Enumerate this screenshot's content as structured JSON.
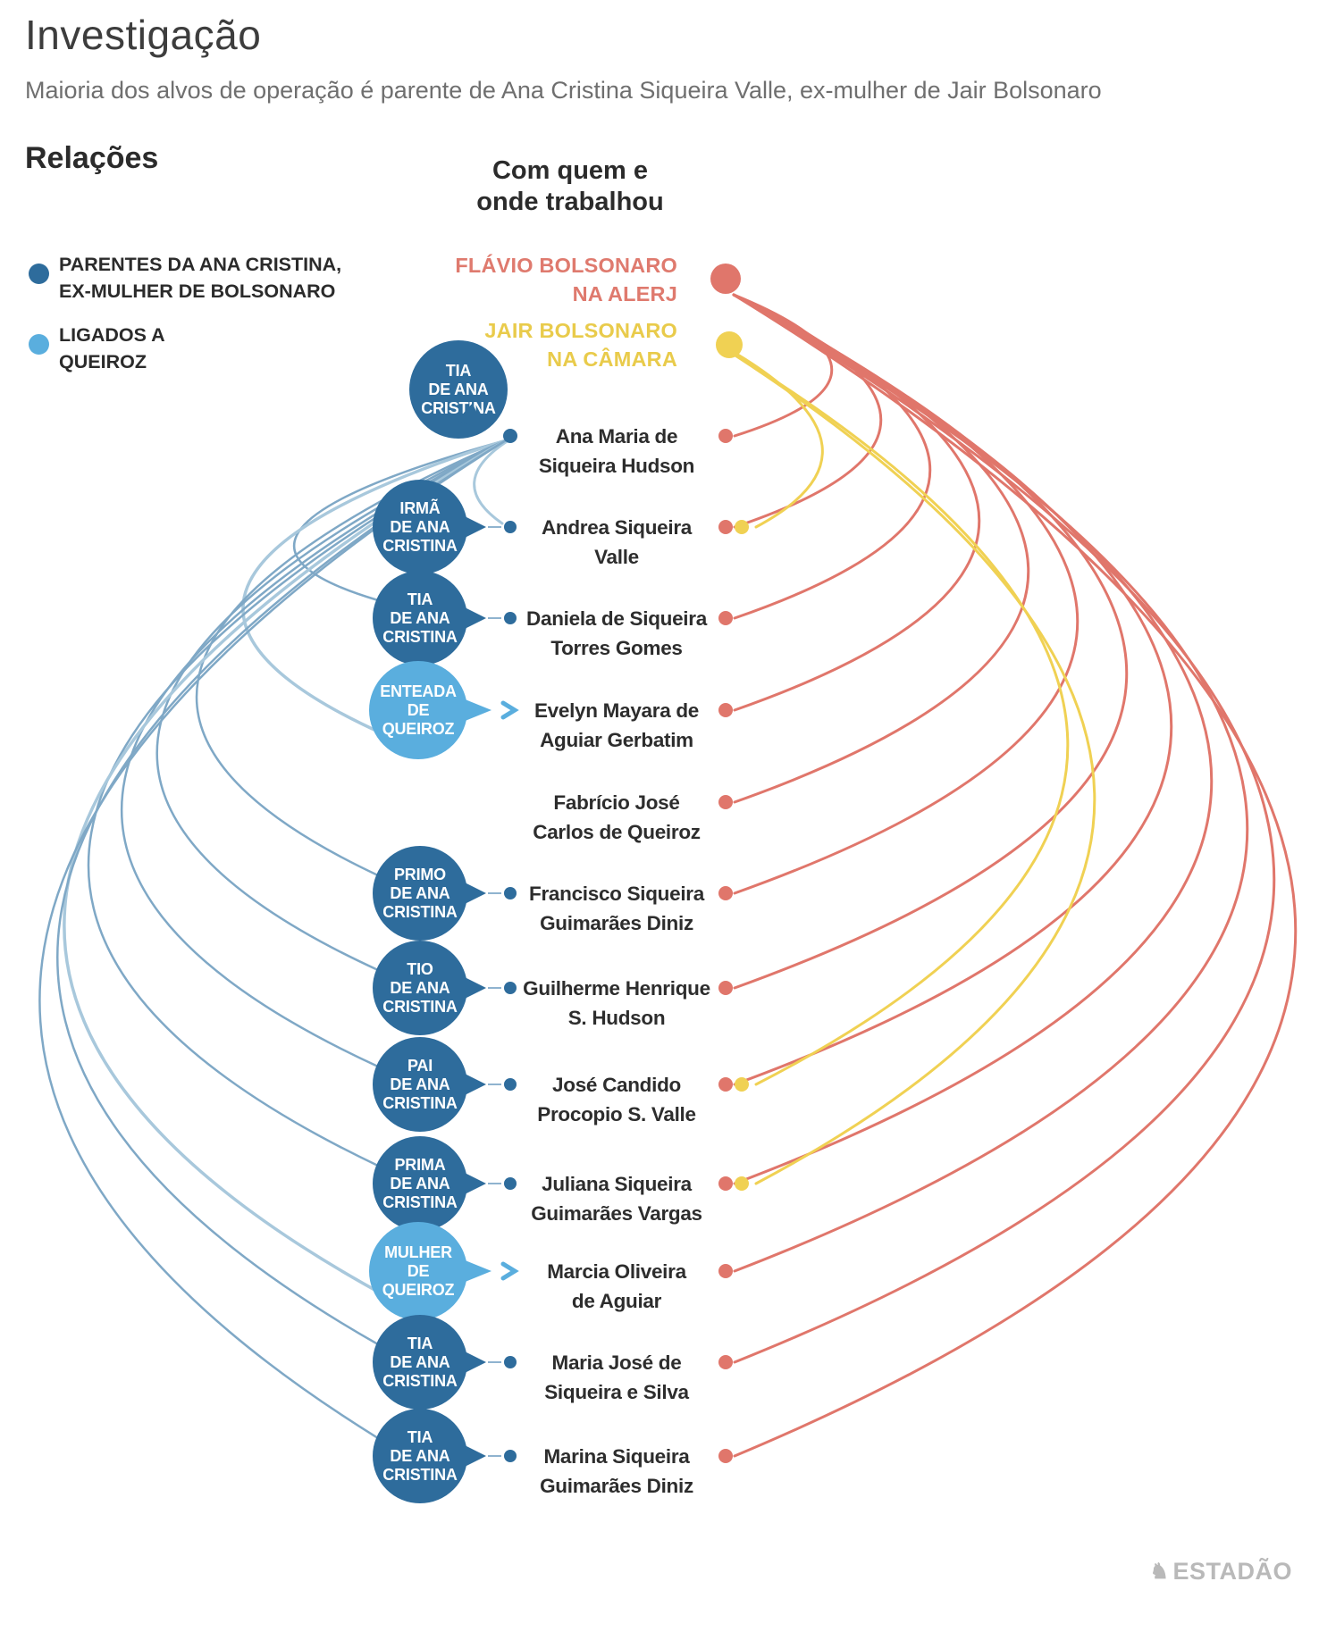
{
  "page": {
    "title": "Investigação",
    "subtitle": "Maioria dos alvos de operação é parente de Ana Cristina Siqueira Valle, ex-mulher de Jair Bolsonaro"
  },
  "legend": {
    "heading": "Relações",
    "items": [
      {
        "id": "family",
        "lines": [
          "PARENTES DA ANA CRISTINA,",
          "EX-MULHER DE BOLSONARO"
        ],
        "color": "#2e6c9c"
      },
      {
        "id": "queiroz",
        "lines": [
          "LIGADOS A",
          "QUEIROZ"
        ],
        "color": "#5aaede"
      }
    ]
  },
  "column": {
    "heading_lines": [
      "Com quem e",
      "onde trabalhou"
    ]
  },
  "workplaces": [
    {
      "id": "flavio",
      "lines": [
        "FLÁVIO BOLSONARO",
        "NA ALERJ"
      ],
      "color": "#df7a6e",
      "dot_color": "#e0766b"
    },
    {
      "id": "jair",
      "lines": [
        "JAIR BOLSONARO",
        "NA CÂMARA"
      ],
      "color": "#e9cb4b",
      "dot_color": "#f0d153"
    }
  ],
  "people": [
    {
      "name_lines": [
        "Ana Maria de",
        "Siqueira Hudson"
      ],
      "relation_lines": [
        "TIA",
        "DE ANA",
        "CRISTINA"
      ],
      "relation_type": "family",
      "workplaces": [
        "flavio"
      ]
    },
    {
      "name_lines": [
        "Andrea Siqueira",
        "Valle"
      ],
      "relation_lines": [
        "IRMÃ",
        "DE ANA",
        "CRISTINA"
      ],
      "relation_type": "family",
      "workplaces": [
        "flavio",
        "jair"
      ]
    },
    {
      "name_lines": [
        "Daniela de Siqueira",
        "Torres Gomes"
      ],
      "relation_lines": [
        "TIA",
        "DE ANA",
        "CRISTINA"
      ],
      "relation_type": "family",
      "workplaces": [
        "flavio"
      ]
    },
    {
      "name_lines": [
        "Evelyn Mayara de",
        "Aguiar Gerbatim"
      ],
      "relation_lines": [
        "ENTEADA",
        "DE",
        "QUEIROZ"
      ],
      "relation_type": "queiroz",
      "workplaces": [
        "flavio"
      ]
    },
    {
      "name_lines": [
        "Fabrício José",
        "Carlos de Queiroz"
      ],
      "relation_lines": null,
      "relation_type": "none",
      "workplaces": [
        "flavio"
      ]
    },
    {
      "name_lines": [
        "Francisco Siqueira",
        "Guimarães Diniz"
      ],
      "relation_lines": [
        "PRIMO",
        "DE ANA",
        "CRISTINA"
      ],
      "relation_type": "family",
      "workplaces": [
        "flavio"
      ]
    },
    {
      "name_lines": [
        "Guilherme Henrique",
        "S. Hudson"
      ],
      "relation_lines": [
        "TIO",
        "DE ANA",
        "CRISTINA"
      ],
      "relation_type": "family",
      "workplaces": [
        "flavio"
      ]
    },
    {
      "name_lines": [
        "José Candido",
        "Procopio S. Valle"
      ],
      "relation_lines": [
        "PAI",
        "DE ANA",
        "CRISTINA"
      ],
      "relation_type": "family",
      "workplaces": [
        "flavio",
        "jair"
      ]
    },
    {
      "name_lines": [
        "Juliana Siqueira",
        "Guimarães Vargas"
      ],
      "relation_lines": [
        "PRIMA",
        "DE ANA",
        "CRISTINA"
      ],
      "relation_type": "family",
      "workplaces": [
        "flavio",
        "jair"
      ]
    },
    {
      "name_lines": [
        "Marcia Oliveira",
        "de Aguiar"
      ],
      "relation_lines": [
        "MULHER",
        "DE",
        "QUEIROZ"
      ],
      "relation_type": "queiroz",
      "workplaces": [
        "flavio"
      ]
    },
    {
      "name_lines": [
        "Maria José de",
        "Siqueira e Silva"
      ],
      "relation_lines": [
        "TIA",
        "DE ANA",
        "CRISTINA"
      ],
      "relation_type": "family",
      "workplaces": [
        "flavio"
      ]
    },
    {
      "name_lines": [
        "Marina Siqueira",
        "Guimarães Diniz"
      ],
      "relation_lines": [
        "TIA",
        "DE ANA",
        "CRISTINA"
      ],
      "relation_type": "family",
      "workplaces": [
        "flavio"
      ]
    }
  ],
  "footer": {
    "logo": "ESTADÃO",
    "logo_icon": "horse-rider-icon"
  },
  "colors": {
    "family_blue": "#2e6c9c",
    "queiroz_blue": "#5aaede",
    "flavio_red": "#e0766b",
    "jair_yellow": "#f0d153",
    "left_arc_blue": "#7fa8c6",
    "left_arc_light": "#a8c8dc",
    "title_gray": "#3d3d3d",
    "subtitle_gray": "#6f6f6f",
    "logo_gray": "#b9b9b9"
  }
}
